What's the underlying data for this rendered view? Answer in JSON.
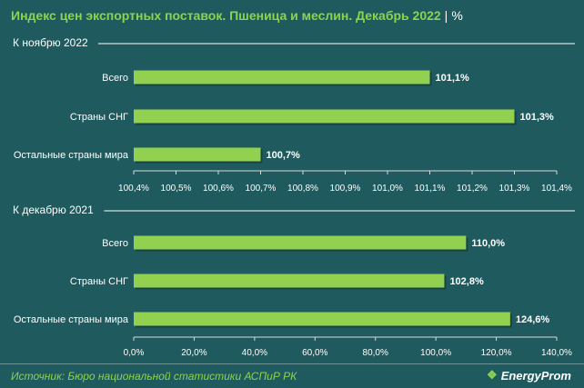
{
  "title": "Индекс цен экспортных поставок. Пшеница и меслин. Декабрь 2022",
  "title_sep": "|",
  "unit": "%",
  "source": "Источник: Бюро национальной статистики АСПиР РК",
  "brand": "EnergyProm",
  "colors": {
    "background": "#1f5a5e",
    "bar": "#92d050",
    "title": "#8bd44e",
    "text": "#ffffff"
  },
  "chart_data": [
    {
      "type": "bar",
      "orientation": "horizontal",
      "title": "К ноябрю 2022",
      "categories": [
        "Всего",
        "Страны СНГ",
        "Остальные страны мира"
      ],
      "values": [
        101.1,
        101.3,
        100.7
      ],
      "value_labels": [
        "101,1%",
        "101,3%",
        "100,7%"
      ],
      "xlim": [
        100.4,
        101.4
      ],
      "xticks": [
        100.4,
        100.5,
        100.6,
        100.7,
        100.8,
        100.9,
        101.0,
        101.1,
        101.2,
        101.3,
        101.4
      ],
      "xtick_labels": [
        "100,4%",
        "100,5%",
        "100,6%",
        "100,7%",
        "100,8%",
        "100,9%",
        "101,0%",
        "101,1%",
        "101,2%",
        "101,3%",
        "101,4%"
      ],
      "grid": false
    },
    {
      "type": "bar",
      "orientation": "horizontal",
      "title": "К декабрю 2021",
      "categories": [
        "Всего",
        "Страны СНГ",
        "Остальные страны мира"
      ],
      "values": [
        110.0,
        102.8,
        124.6
      ],
      "value_labels": [
        "110,0%",
        "102,8%",
        "124,6%"
      ],
      "xlim": [
        0,
        140
      ],
      "xticks": [
        0,
        20,
        40,
        60,
        80,
        100,
        120,
        140
      ],
      "xtick_labels": [
        "0,0%",
        "20,0%",
        "40,0%",
        "60,0%",
        "80,0%",
        "100,0%",
        "120,0%",
        "140,0%"
      ],
      "grid": false
    }
  ]
}
